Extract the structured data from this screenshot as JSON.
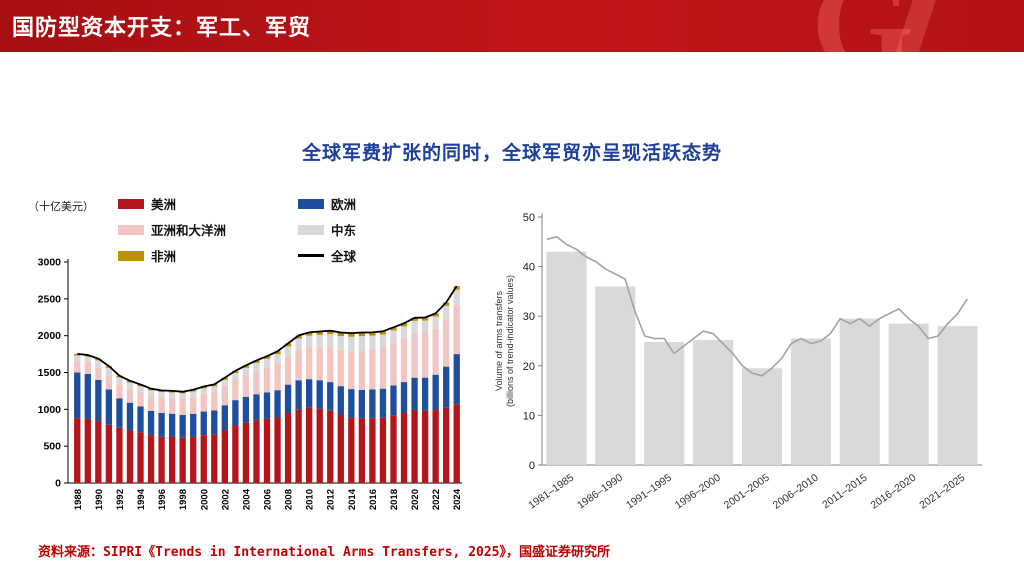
{
  "header": {
    "title": "国防型资本开支：军工、军贸"
  },
  "subtitle": "全球军费扩张的同时，全球军贸亦呈现活跃态势",
  "footer": {
    "source": "资料来源：SIPRI《Trends in International Arms Transfers, 2025》，国盛证券研究所"
  },
  "colors": {
    "banner_red": "#b31215",
    "subtitle_blue": "#1c3f9c",
    "source_red": "#c00000"
  },
  "chart_data": [
    {
      "type": "bar",
      "name": "global-military-expenditure",
      "stacked": true,
      "unit_label": "（十亿美元）",
      "ylim": [
        0,
        3000
      ],
      "yticks": [
        0,
        500,
        1000,
        1500,
        2000,
        2500,
        3000
      ],
      "grid": false,
      "legend_position": "top",
      "categories": [
        1988,
        1989,
        1990,
        1991,
        1992,
        1993,
        1994,
        1995,
        1996,
        1997,
        1998,
        1999,
        2000,
        2001,
        2002,
        2003,
        2004,
        2005,
        2006,
        2007,
        2008,
        2009,
        2010,
        2011,
        2012,
        2013,
        2014,
        2015,
        2016,
        2017,
        2018,
        2019,
        2020,
        2021,
        2022,
        2023,
        2024
      ],
      "series": [
        {
          "name": "美洲",
          "color": "#b3161b",
          "values": [
            880,
            870,
            840,
            790,
            750,
            720,
            690,
            650,
            630,
            625,
            615,
            625,
            650,
            660,
            720,
            780,
            820,
            850,
            870,
            890,
            950,
            1000,
            1020,
            1010,
            980,
            930,
            890,
            880,
            880,
            885,
            920,
            950,
            990,
            980,
            990,
            1020,
            1070
          ]
        },
        {
          "name": "欧洲",
          "color": "#1f4e9f",
          "values": [
            620,
            610,
            560,
            480,
            400,
            370,
            350,
            330,
            320,
            315,
            310,
            315,
            320,
            325,
            335,
            345,
            350,
            355,
            360,
            370,
            385,
            395,
            390,
            385,
            390,
            385,
            385,
            385,
            390,
            395,
            405,
            420,
            440,
            450,
            480,
            560,
            680
          ]
        },
        {
          "name": "亚洲和大洋洲",
          "color": "#f2c4c2",
          "values": [
            150,
            155,
            165,
            175,
            185,
            190,
            195,
            200,
            210,
            215,
            220,
            230,
            240,
            250,
            265,
            280,
            300,
            320,
            340,
            365,
            385,
            420,
            440,
            455,
            475,
            495,
            515,
            535,
            550,
            560,
            575,
            590,
            610,
            620,
            630,
            645,
            660
          ]
        },
        {
          "name": "中东",
          "color": "#d9d9d9",
          "values": [
            80,
            80,
            100,
            120,
            100,
            85,
            80,
            78,
            75,
            73,
            72,
            72,
            75,
            78,
            82,
            88,
            95,
            105,
            115,
            125,
            135,
            145,
            150,
            160,
            175,
            185,
            195,
            195,
            180,
            175,
            170,
            165,
            160,
            155,
            160,
            180,
            215
          ]
        },
        {
          "name": "非洲",
          "color": "#bf9000",
          "values": [
            22,
            22,
            22,
            22,
            22,
            22,
            22,
            22,
            22,
            22,
            23,
            24,
            25,
            26,
            28,
            30,
            32,
            34,
            36,
            38,
            40,
            42,
            44,
            46,
            47,
            48,
            50,
            48,
            45,
            44,
            43,
            43,
            43,
            42,
            42,
            45,
            48
          ]
        }
      ],
      "line_series": {
        "name": "全球",
        "color": "#000000",
        "values": [
          1752,
          1737,
          1687,
          1587,
          1457,
          1387,
          1337,
          1280,
          1257,
          1250,
          1240,
          1266,
          1310,
          1339,
          1430,
          1523,
          1597,
          1664,
          1721,
          1788,
          1895,
          2002,
          2044,
          2056,
          2067,
          2043,
          2035,
          2043,
          2045,
          2059,
          2113,
          2168,
          2243,
          2247,
          2302,
          2450,
          2673
        ]
      }
    },
    {
      "type": "bar",
      "name": "volume-of-arms-transfers",
      "ylabel_lines": [
        "Volume of arms transfers",
        "(billions of trend-indicator values)"
      ],
      "ylim": [
        0,
        50
      ],
      "yticks": [
        0,
        10,
        20,
        30,
        40,
        50
      ],
      "grid": false,
      "bar_color": "#d9d9d9",
      "line_color": "#a3a3a3",
      "categories": [
        "1981–1985",
        "1986–1990",
        "1991–1995",
        "1996–2000",
        "2001–2005",
        "2006–2010",
        "2011–2015",
        "2016–2020",
        "2021–2025"
      ],
      "values": [
        43,
        36,
        24.8,
        25.2,
        19.5,
        25.5,
        29.5,
        28.5,
        28
      ],
      "line": {
        "start_year": 1981,
        "end_year": 2024,
        "values": [
          45.5,
          46,
          44.5,
          43.5,
          42,
          41,
          39.5,
          38.5,
          37.5,
          31,
          26,
          25.5,
          25.5,
          22.5,
          24,
          25.5,
          27,
          26.5,
          24.5,
          22.5,
          20,
          18.5,
          18,
          19.5,
          21.5,
          24.5,
          25.5,
          24.5,
          25,
          26.5,
          29.5,
          28.5,
          29.5,
          28,
          29.5,
          30.5,
          31.5,
          29.5,
          28,
          25.5,
          26,
          28.5,
          30.5,
          33.5
        ]
      }
    }
  ]
}
